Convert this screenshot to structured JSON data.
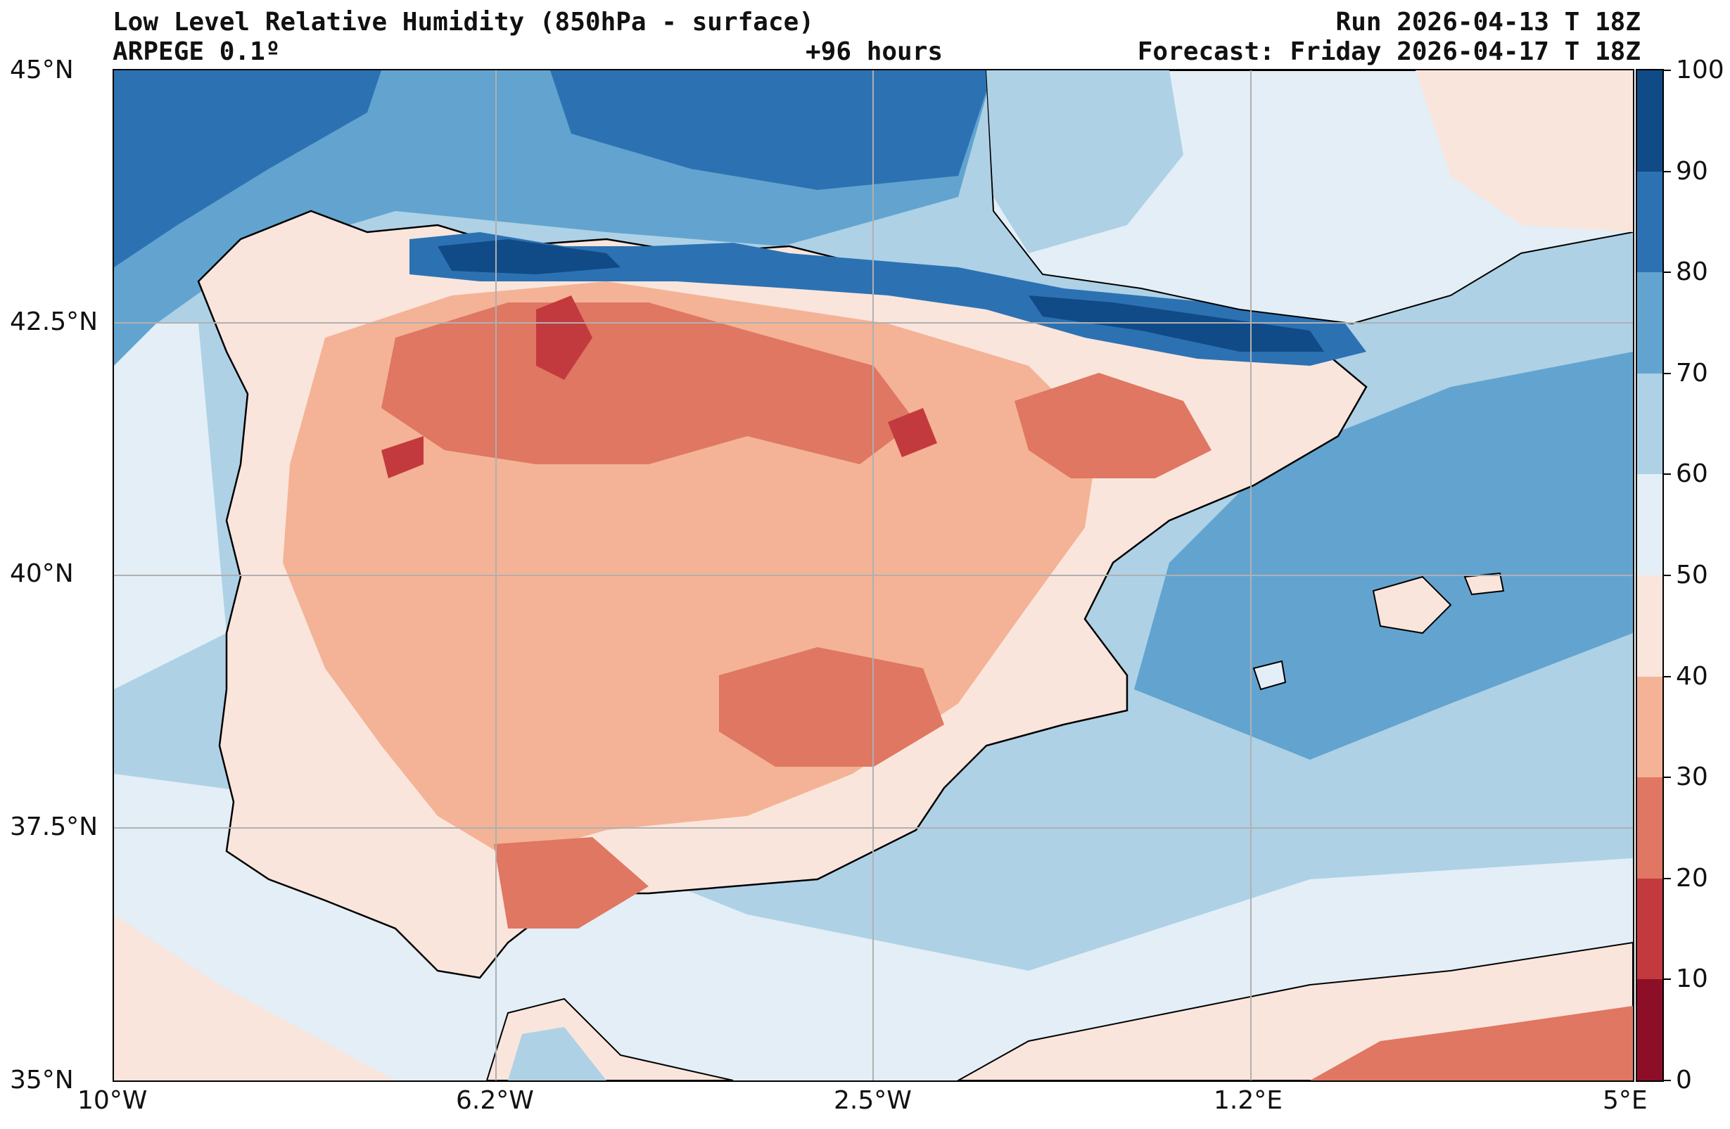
{
  "header": {
    "title": "Low Level Relative Humidity (850hPa - surface)",
    "model": "ARPEGE 0.1º",
    "lead_time": "+96 hours",
    "run": "Run 2026-04-13 T 18Z",
    "forecast": "Forecast: Friday 2026-04-17 T 18Z"
  },
  "axes": {
    "lat_labels": [
      "45°N",
      "42.5°N",
      "40°N",
      "37.5°N",
      "35°N"
    ],
    "lon_labels": [
      "10°W",
      "6.2°W",
      "2.5°W",
      "1.2°E",
      "5°E"
    ]
  },
  "colorbar": {
    "levels": [
      "100",
      "90",
      "80",
      "70",
      "60",
      "50",
      "40",
      "30",
      "20",
      "10",
      "0"
    ],
    "colors": [
      "#104b87",
      "#2c72b3",
      "#62a4cf",
      "#aed1e6",
      "#e3eef6",
      "#fae5dc",
      "#f4b396",
      "#df7762",
      "#c33a3e",
      "#8c0f27"
    ]
  },
  "map": {
    "sea_color": "#aed1e6",
    "land_color": "#f4b396",
    "coast_color": "#000000",
    "grid_color": "#b0b0b0",
    "region_labels": []
  }
}
